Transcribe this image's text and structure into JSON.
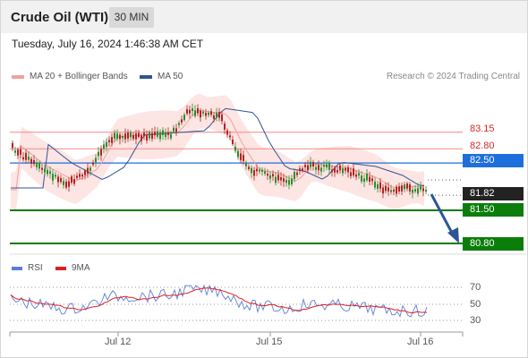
{
  "header": {
    "title": "Crude Oil (WTI)",
    "timeframe": "30 MIN"
  },
  "datetime": "Tuesday, July 16, 2024 1:46:38 AM CET",
  "legend": {
    "ma20_label": "MA 20 + Bollinger Bands",
    "ma50_label": "MA 50",
    "ma20_color": "#f4a09a",
    "ma50_color": "#2f5597"
  },
  "copyright": "Research © 2024 Trading Central",
  "levels": [
    {
      "label": "83.15",
      "value": 83.15,
      "style": "resistance-plain",
      "color": "#d72b2b"
    },
    {
      "label": "82.80",
      "value": 82.8,
      "style": "resistance-plain",
      "color": "#d72b2b"
    },
    {
      "label": "82.50",
      "value": 82.5,
      "style": "pivot",
      "color": "#1e6fdc"
    },
    {
      "label": "81.82",
      "value": 81.82,
      "style": "last",
      "color": "#222222"
    },
    {
      "label": "81.50",
      "value": 81.5,
      "style": "support",
      "color": "#0a7d0a"
    },
    {
      "label": "80.80",
      "value": 80.8,
      "style": "support",
      "color": "#0a7d0a"
    }
  ],
  "rsi_legend": {
    "rsi_label": "RSI",
    "ma_label": "9MA",
    "rsi_color": "#5b7fd6",
    "ma_color": "#e02020"
  },
  "rsi_levels": [
    "70",
    "50",
    "30"
  ],
  "x_ticks": [
    "Jul 12",
    "Jul 15",
    "Jul 16"
  ],
  "colors": {
    "up_candle": "#2e8b2e",
    "down_candle": "#b22222",
    "bollinger_fill": "#fde0de",
    "forecast_arrow": "#2f5597"
  }
}
